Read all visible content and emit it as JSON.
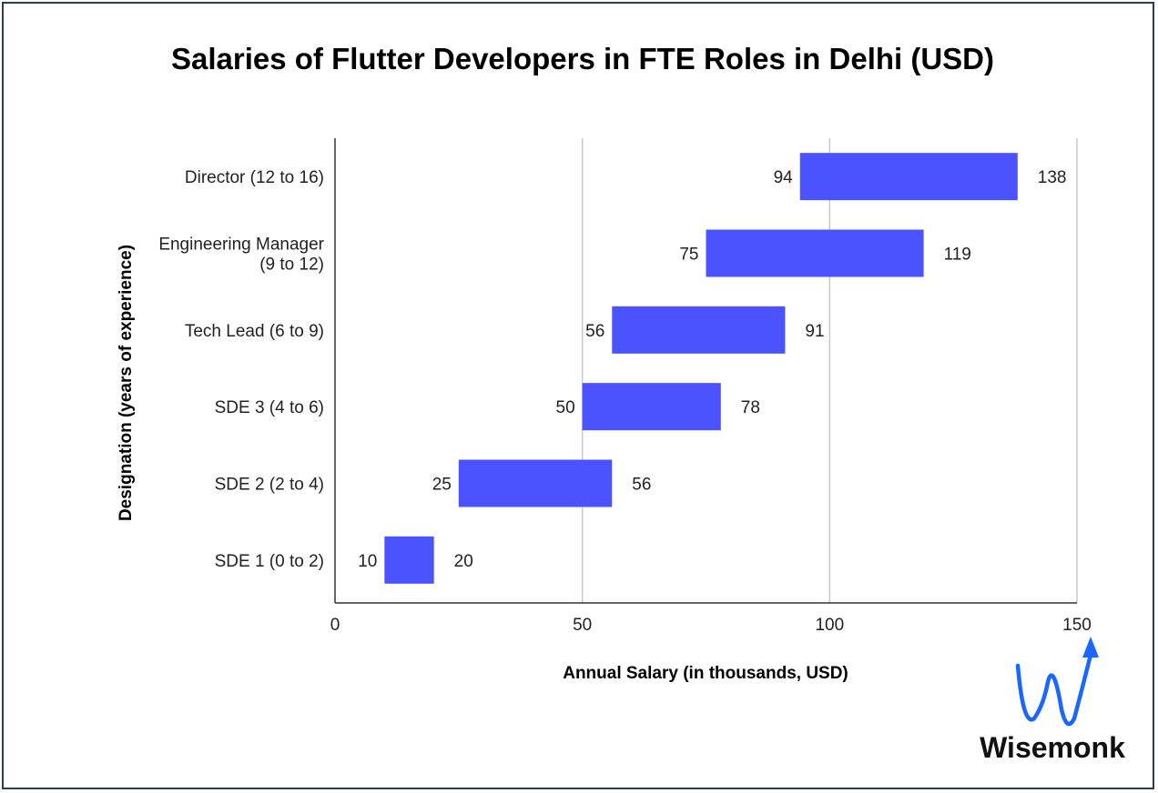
{
  "chart_data": {
    "type": "bar",
    "orientation": "horizontal-floating-range",
    "title": "Salaries of Flutter Developers in FTE Roles in Delhi (USD)",
    "xlabel": "Annual Salary (in thousands, USD)",
    "ylabel": "Designation (years of experience)",
    "xlim": [
      0,
      150
    ],
    "xticks": [
      "0",
      "50",
      "100",
      "150"
    ],
    "grid": "vertical",
    "bar_color": "#4b52ff",
    "categories": [
      [
        "Director (12 to 16)"
      ],
      [
        "Engineering Manager",
        "(9 to 12)"
      ],
      [
        "Tech Lead (6 to 9)"
      ],
      [
        "SDE 3 (4 to 6)"
      ],
      [
        "SDE 2 (2 to 4)"
      ],
      [
        "SDE 1 (0 to 2)"
      ]
    ],
    "min": [
      94,
      75,
      56,
      50,
      25,
      10
    ],
    "max": [
      138,
      119,
      91,
      78,
      56,
      20
    ]
  },
  "brand": {
    "name": "Wisemonk",
    "logo_color": "#1a66ff"
  }
}
